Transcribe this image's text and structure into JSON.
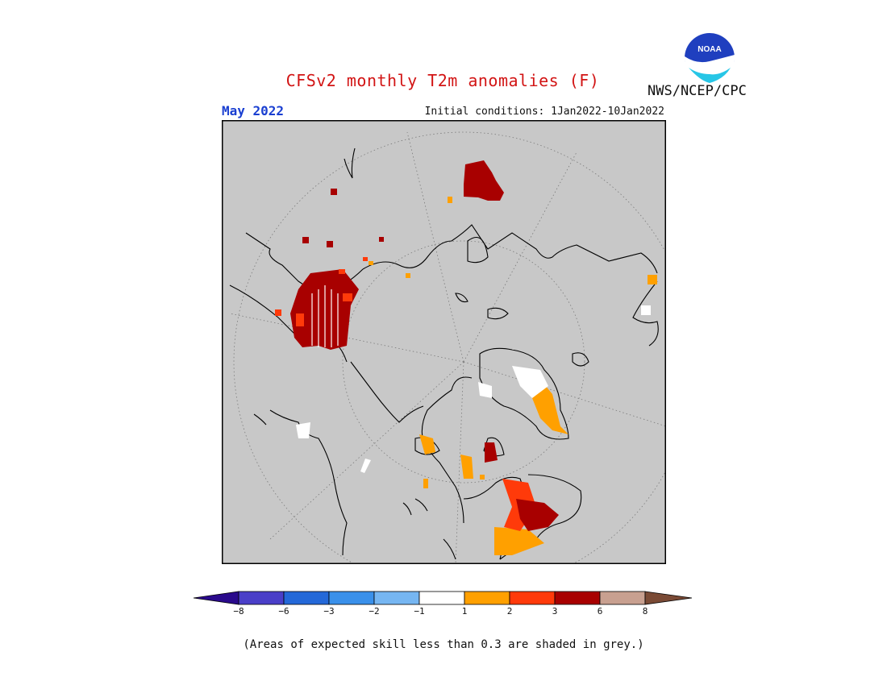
{
  "title": "CFSv2 monthly T2m anomalies (F)",
  "month": "May 2022",
  "initial_conditions": "Initial conditions: 1Jan2022-10Jan2022",
  "agency": "NWS/NCEP/CPC",
  "logo_text": "NOAA",
  "skill_note": "(Areas of expected skill less than 0.3 are shaded in grey.)",
  "colors": {
    "background_grey": "#c8c8c8",
    "neg8": "#2a0a8c",
    "neg6": "#4a3fc8",
    "neg3": "#2468d8",
    "neg2": "#3a90ea",
    "neg1": "#76b6f2",
    "neutral": "#ffffff",
    "pos1": "#ffa000",
    "pos2": "#ff3a0a",
    "pos3": "#a80000",
    "pos6": "#c8a090",
    "pos8": "#7a4a35"
  },
  "legend": {
    "labels": [
      "−8",
      "−6",
      "−3",
      "−2",
      "−1",
      "1",
      "2",
      "3",
      "6",
      "8"
    ],
    "bins": [
      {
        "range": "-6 to -8",
        "color": "#4a3fc8"
      },
      {
        "range": "-3 to -6",
        "color": "#2468d8"
      },
      {
        "range": "-2 to -3",
        "color": "#3a90ea"
      },
      {
        "range": "-1 to -2",
        "color": "#76b6f2"
      },
      {
        "range": "-1 to 1",
        "color": "#ffffff"
      },
      {
        "range": "1 to 2",
        "color": "#ffa000"
      },
      {
        "range": "2 to 3",
        "color": "#ff3a0a"
      },
      {
        "range": "3 to 6",
        "color": "#a80000"
      },
      {
        "range": "6 to 8",
        "color": "#c8a090"
      }
    ]
  }
}
